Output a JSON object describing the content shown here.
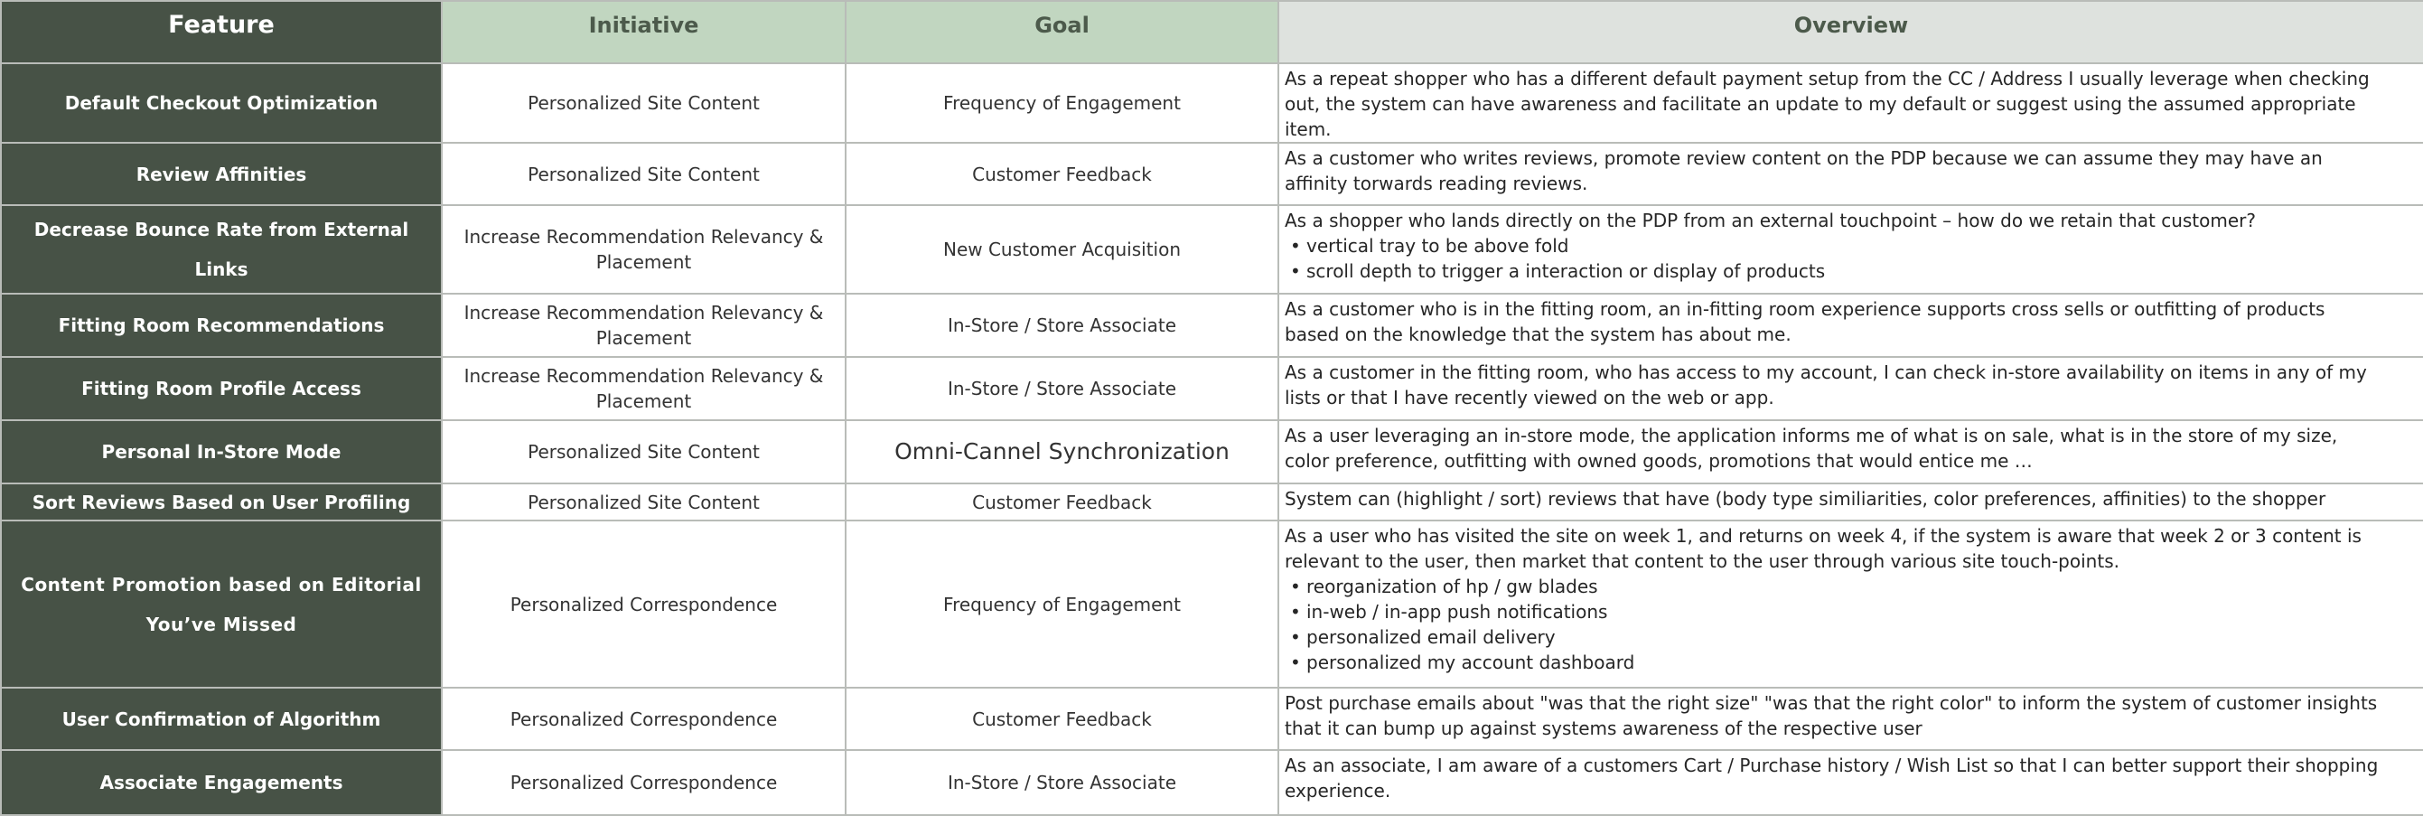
{
  "headers": {
    "feature": "Feature",
    "initiative": "Initiative",
    "goal": "Goal",
    "overview": "Overview"
  },
  "colors": {
    "feature_fill": "#475246",
    "initiative_goal_header_fill": "#c1d6c0",
    "overview_header_fill": "#dee2de",
    "grid_line": "#b9bcb8"
  },
  "rows": [
    {
      "feature": "Default Checkout Optimization",
      "initiative": "Personalized Site Content",
      "goal": "Frequency of Engagement",
      "overview": "As a repeat shopper who has a different default payment setup from the CC / Address I usually leverage when checking out, the system can have awareness and facilitate an update to my default or suggest using the assumed appropriate item.",
      "bullets": []
    },
    {
      "feature": "Review Affinities",
      "initiative": "Personalized Site Content",
      "goal": "Customer Feedback",
      "overview": "As a customer who writes reviews, promote review content on the PDP because we can assume they may have an affinity torwards reading reviews.",
      "bullets": []
    },
    {
      "feature": "Decrease Bounce Rate from External Links",
      "initiative": "Increase Recommendation Relevancy & Placement",
      "goal": "New Customer Acquisition",
      "overview": "As a shopper who lands directly on the PDP from an external touchpoint – how do we retain that customer?",
      "bullets": [
        "vertical tray to be above fold",
        "scroll depth to trigger a interaction or display of products"
      ]
    },
    {
      "feature": "Fitting Room Recommendations",
      "initiative": "Increase Recommendation Relevancy & Placement",
      "goal": "In-Store / Store Associate",
      "overview": "As a customer who is in the fitting room, an in-fitting room experience supports cross sells or outfitting of products based on the knowledge that the system has about me.",
      "bullets": []
    },
    {
      "feature": "Fitting Room Profile Access",
      "initiative": "Increase Recommendation Relevancy & Placement",
      "goal": "In-Store / Store Associate",
      "overview": "As a customer in the fitting room, who has access to my account, I can check in-store availability on items in any of my lists or that I have recently viewed on the web or app.",
      "bullets": []
    },
    {
      "feature": "Personal In-Store Mode",
      "initiative": "Personalized Site Content",
      "goal": "Omni-Cannel Synchronization",
      "overview": "As a user leveraging an in-store mode, the application informs me of what is on sale, what is in the store of my size, color preference, outfitting with owned goods, promotions that would entice me …",
      "bullets": []
    },
    {
      "feature": "Sort Reviews Based on User Profiling",
      "initiative": "Personalized Site Content",
      "goal": "Customer Feedback",
      "overview": "System can (highlight / sort) reviews that have (body type similiarities, color preferences, affinities) to the shopper",
      "bullets": []
    },
    {
      "feature": "Content Promotion based on Editorial You’ve Missed",
      "initiative": "Personalized Correspondence",
      "goal": "Frequency of Engagement",
      "overview": "As a user who has visited the site on week 1, and returns on week 4, if the system is aware that week 2 or 3 content is relevant to the user, then market that content to the user through various site touch-points.",
      "bullets": [
        "reorganization of hp / gw blades",
        "in-web / in-app push notifications",
        "personalized email delivery",
        "personalized my account dashboard"
      ]
    },
    {
      "feature": "User Confirmation of Algorithm",
      "initiative": "Personalized Correspondence",
      "goal": "Customer Feedback",
      "overview": "Post purchase emails about \"was that the right size\" \"was that the right color\" to inform the system of customer insights that it can bump up against systems awareness of the respective user",
      "bullets": []
    },
    {
      "feature": "Associate Engagements",
      "initiative": "Personalized Correspondence",
      "goal": "In-Store / Store Associate",
      "overview": "As an associate, I am aware of a customers Cart / Purchase history / Wish List so that I can better support their shopping experience.",
      "bullets": []
    }
  ]
}
